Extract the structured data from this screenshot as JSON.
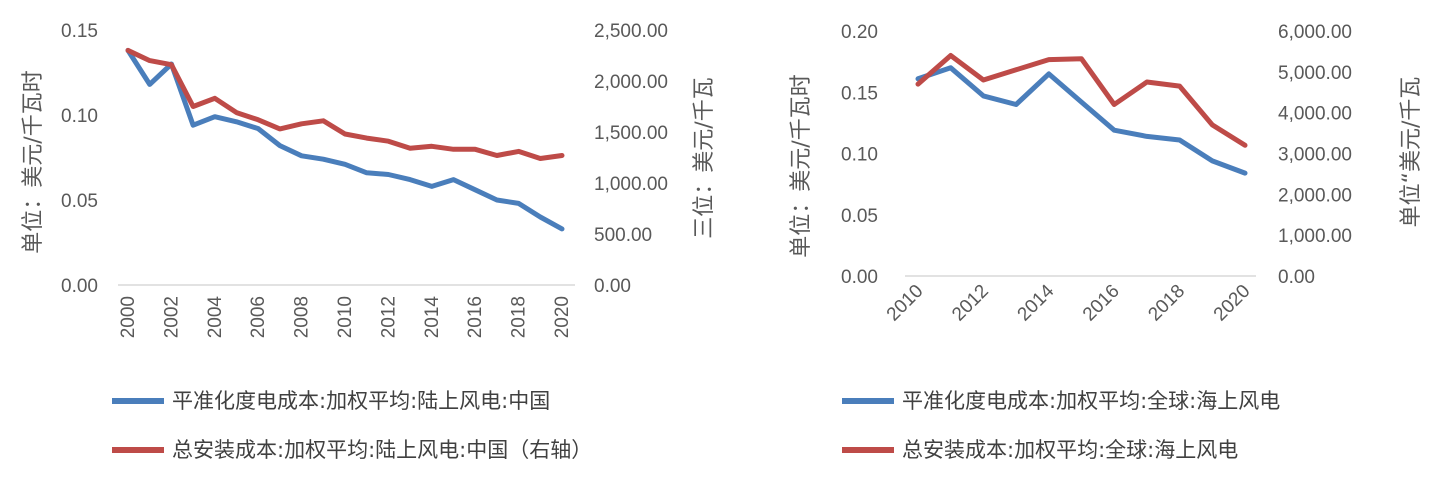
{
  "chart_data": [
    {
      "type": "line",
      "title": "",
      "x": [
        "2000",
        "2001",
        "2002",
        "2003",
        "2004",
        "2005",
        "2006",
        "2007",
        "2008",
        "2009",
        "2010",
        "2011",
        "2012",
        "2013",
        "2014",
        "2015",
        "2016",
        "2017",
        "2018",
        "2019",
        "2020"
      ],
      "x_tick_labels": [
        "2000",
        "2002",
        "2004",
        "2006",
        "2008",
        "2010",
        "2012",
        "2014",
        "2016",
        "2018",
        "2020"
      ],
      "ylabel": "单位：美元/千瓦时",
      "y2label": "三位：美元/千瓦",
      "ylim": [
        0,
        0.15
      ],
      "y2lim": [
        0,
        2500
      ],
      "y_ticks": [
        "0.00",
        "0.05",
        "0.10",
        "0.15"
      ],
      "y2_ticks": [
        "0.00",
        "500.00",
        "1,000.00",
        "1,500.00",
        "2,000.00",
        "2,500.00"
      ],
      "grid": false,
      "legend_position": "bottom",
      "series": [
        {
          "name": "平准化度电成本:加权平均:陆上风电:中国",
          "axis": "left",
          "color": "#4A7EBB",
          "values": [
            0.138,
            0.118,
            0.13,
            0.094,
            0.099,
            0.096,
            0.092,
            0.082,
            0.076,
            0.074,
            0.071,
            0.066,
            0.065,
            0.062,
            0.058,
            0.062,
            0.056,
            0.05,
            0.048,
            0.04,
            0.033
          ]
        },
        {
          "name": "总安装成本:加权平均:陆上风电:中国（右轴）",
          "axis": "right",
          "color": "#BE4B48",
          "values": [
            2300,
            2200,
            2160,
            1750,
            1830,
            1690,
            1620,
            1530,
            1580,
            1610,
            1480,
            1440,
            1410,
            1340,
            1360,
            1330,
            1330,
            1270,
            1310,
            1240,
            1270
          ]
        }
      ]
    },
    {
      "type": "line",
      "title": "",
      "x": [
        "2010",
        "2011",
        "2012",
        "2013",
        "2014",
        "2015",
        "2016",
        "2017",
        "2018",
        "2019",
        "2020"
      ],
      "x_tick_labels": [
        "2010",
        "2012",
        "2014",
        "2016",
        "2018",
        "2020"
      ],
      "ylabel": "单位：美元/千瓦时",
      "y2label": "单位“美元/千瓦",
      "ylim": [
        0,
        0.2
      ],
      "y2lim": [
        0,
        6000
      ],
      "y_ticks": [
        "0.00",
        "0.05",
        "0.10",
        "0.15",
        "0.20"
      ],
      "y2_ticks": [
        "0.00",
        "1,000.00",
        "2,000.00",
        "3,000.00",
        "4,000.00",
        "5,000.00",
        "6,000.00"
      ],
      "grid": false,
      "legend_position": "bottom",
      "series": [
        {
          "name": "平准化度电成本:加权平均:全球:海上风电",
          "axis": "left",
          "color": "#4A7EBB",
          "values": [
            0.161,
            0.17,
            0.147,
            0.14,
            0.165,
            0.142,
            0.119,
            0.114,
            0.111,
            0.094,
            0.084
          ]
        },
        {
          "name": "总安装成本:加权平均:全球:海上风电",
          "axis": "right",
          "color": "#BE4B48",
          "values": [
            4700,
            5400,
            4800,
            5050,
            5300,
            5320,
            4200,
            4750,
            4650,
            3700,
            3200
          ]
        }
      ]
    }
  ]
}
